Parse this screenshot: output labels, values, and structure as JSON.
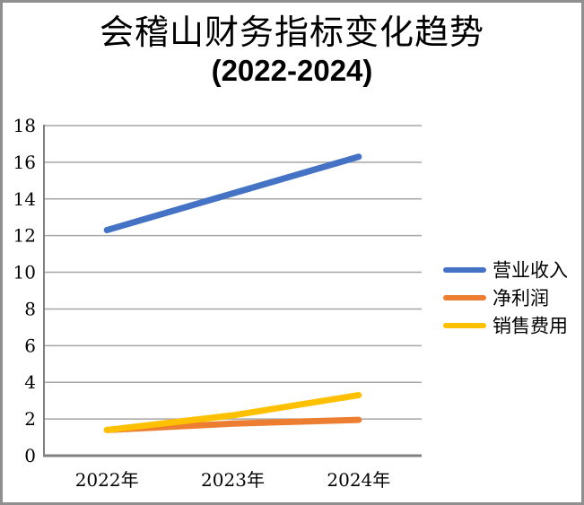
{
  "title": {
    "line1": "会稽山财务指标变化趋势",
    "line2": "(2022-2024)"
  },
  "chart_data": {
    "type": "line",
    "title": "会稽山财务指标变化趋势 (2022-2024)",
    "categories": [
      "2022年",
      "2023年",
      "2024年"
    ],
    "series": [
      {
        "name": "营业收入",
        "color": "#4472C4",
        "values": [
          12.3,
          14.3,
          16.3
        ]
      },
      {
        "name": "净利润",
        "color": "#ED7D31",
        "values": [
          1.4,
          1.75,
          1.95
        ]
      },
      {
        "name": "销售费用",
        "color": "#FFC000",
        "values": [
          1.4,
          2.2,
          3.3
        ]
      }
    ],
    "xlabel": "",
    "ylabel": "",
    "ylim": [
      0,
      18
    ],
    "yticks": [
      0,
      2,
      4,
      6,
      8,
      10,
      12,
      14,
      16,
      18
    ],
    "grid": true,
    "legend_position": "right"
  },
  "colors": {
    "background": "#ffffff",
    "frame_border": "#8f8f8f",
    "gridline": "#a6a6a6",
    "axis": "#808080",
    "text": "#000000"
  }
}
